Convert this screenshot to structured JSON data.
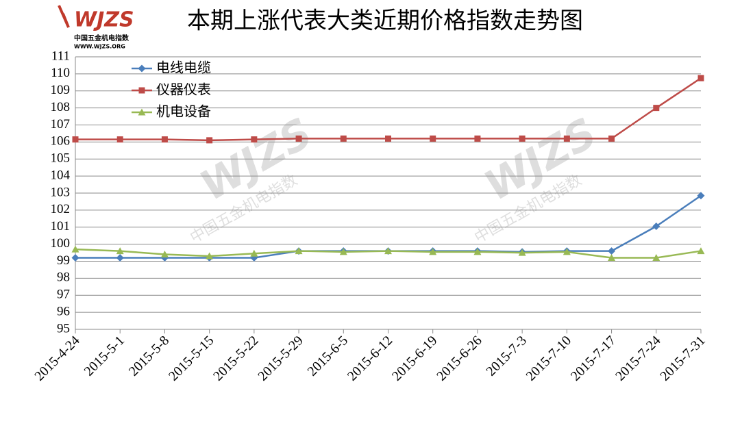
{
  "logo": {
    "mark": "WJZS",
    "name": "中国五金机电指数",
    "url": "WWW.WJZS.ORG"
  },
  "chart_data": {
    "type": "line",
    "title": "本期上涨代表大类近期价格指数走势图",
    "categories": [
      "2015-4-24",
      "2015-5-1",
      "2015-5-8",
      "2015-5-15",
      "2015-5-22",
      "2015-5-29",
      "2015-6-5",
      "2015-6-12",
      "2015-6-19",
      "2015-6-26",
      "2015-7-3",
      "2015-7-10",
      "2015-7-17",
      "2015-7-24",
      "2015-7-31"
    ],
    "series": [
      {
        "name": "电线电缆",
        "color": "#4a7ebb",
        "marker": "diamond",
        "values": [
          99.2,
          99.2,
          99.2,
          99.2,
          99.2,
          99.6,
          99.6,
          99.6,
          99.6,
          99.6,
          99.55,
          99.6,
          99.6,
          101.05,
          102.85
        ]
      },
      {
        "name": "仪器仪表",
        "color": "#be4b48",
        "marker": "square",
        "values": [
          106.15,
          106.15,
          106.15,
          106.1,
          106.15,
          106.2,
          106.2,
          106.2,
          106.2,
          106.2,
          106.2,
          106.2,
          106.2,
          108.0,
          109.75
        ]
      },
      {
        "name": "机电设备",
        "color": "#98b954",
        "marker": "triangle",
        "values": [
          99.7,
          99.6,
          99.4,
          99.3,
          99.45,
          99.6,
          99.55,
          99.6,
          99.55,
          99.55,
          99.5,
          99.55,
          99.2,
          99.2,
          99.6
        ]
      }
    ],
    "ylim": [
      95,
      111
    ],
    "yticks": [
      95,
      96,
      97,
      98,
      99,
      100,
      101,
      102,
      103,
      104,
      105,
      106,
      107,
      108,
      109,
      110,
      111
    ],
    "grid": true
  }
}
